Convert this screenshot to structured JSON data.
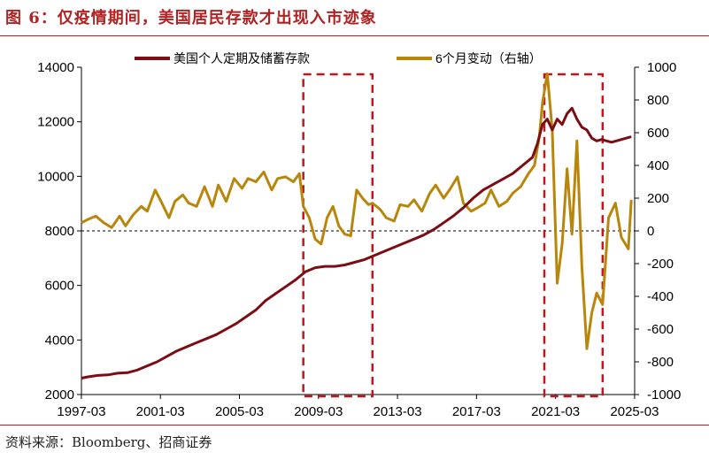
{
  "title": "图 6：仅疫情期间，美国居民存款才出现入市迹象",
  "source": "资料来源：Bloomberg、招商证券",
  "colors": {
    "title": "#b22222",
    "deposits": "#7b0e14",
    "change": "#b8860b",
    "highlight": "#c0161b"
  },
  "chart_data": {
    "type": "line",
    "x_tick_labels": [
      "1997-03",
      "2001-03",
      "2005-03",
      "2009-03",
      "2013-03",
      "2017-03",
      "2021-03",
      "2025-03"
    ],
    "x_range": [
      1997.17,
      2025.17
    ],
    "y_left": {
      "ticks": [
        2000,
        4000,
        6000,
        8000,
        10000,
        12000,
        14000
      ],
      "range": [
        2000,
        14000
      ]
    },
    "y_right": {
      "ticks": [
        -1000,
        -800,
        -600,
        -400,
        -200,
        0,
        200,
        400,
        600,
        800,
        1000
      ],
      "range": [
        -1000,
        1000
      ]
    },
    "zero_reference_line": "right-axis 0 (dashed)",
    "highlight_periods": [
      [
        2008.4,
        2011.9
      ],
      [
        2020.6,
        2023.55
      ]
    ],
    "series": [
      {
        "name": "美国个人定期及储蓄存款",
        "axis": "left",
        "x": [
          1997.17,
          1997.5,
          1998.0,
          1998.5,
          1999.0,
          1999.5,
          2000.0,
          2000.5,
          2001.0,
          2001.5,
          2002.0,
          2002.5,
          2003.0,
          2003.5,
          2004.0,
          2004.5,
          2005.0,
          2005.5,
          2006.0,
          2006.5,
          2007.0,
          2007.5,
          2008.0,
          2008.5,
          2009.0,
          2009.5,
          2010.0,
          2010.5,
          2011.0,
          2011.5,
          2012.0,
          2012.5,
          2013.0,
          2013.5,
          2014.0,
          2014.5,
          2015.0,
          2015.5,
          2016.0,
          2016.5,
          2017.0,
          2017.5,
          2018.0,
          2018.5,
          2019.0,
          2019.5,
          2020.0,
          2020.25,
          2020.5,
          2020.75,
          2021.0,
          2021.25,
          2021.5,
          2021.75,
          2022.0,
          2022.25,
          2022.5,
          2022.75,
          2023.0,
          2023.25,
          2023.5,
          2023.75,
          2024.0,
          2024.5,
          2025.0
        ],
        "values": [
          2600,
          2650,
          2700,
          2720,
          2780,
          2800,
          2900,
          3050,
          3200,
          3400,
          3600,
          3750,
          3900,
          4050,
          4200,
          4400,
          4600,
          4850,
          5100,
          5450,
          5700,
          5950,
          6200,
          6500,
          6650,
          6700,
          6700,
          6750,
          6850,
          6950,
          7100,
          7250,
          7400,
          7550,
          7700,
          7850,
          8050,
          8300,
          8550,
          8850,
          9200,
          9500,
          9700,
          9900,
          10100,
          10400,
          10700,
          11200,
          11900,
          12100,
          11700,
          12100,
          11900,
          12300,
          12500,
          12100,
          11800,
          11700,
          11400,
          11300,
          11350,
          11300,
          11250,
          11350,
          11450
        ]
      },
      {
        "name": "6个月变动（右轴）",
        "axis": "right",
        "x": [
          1997.17,
          1997.5,
          1997.9,
          1998.3,
          1998.7,
          1999.1,
          1999.4,
          1999.8,
          2000.2,
          2000.5,
          2000.9,
          2001.2,
          2001.6,
          2001.9,
          2002.3,
          2002.6,
          2003.0,
          2003.4,
          2003.8,
          2004.1,
          2004.5,
          2004.9,
          2005.3,
          2005.6,
          2006.0,
          2006.4,
          2006.8,
          2007.1,
          2007.5,
          2007.9,
          2008.2,
          2008.4,
          2008.7,
          2009.0,
          2009.3,
          2009.6,
          2009.9,
          2010.2,
          2010.5,
          2010.8,
          2011.1,
          2011.4,
          2011.7,
          2011.9,
          2012.3,
          2012.6,
          2013.0,
          2013.3,
          2013.7,
          2014.0,
          2014.4,
          2014.8,
          2015.1,
          2015.5,
          2015.8,
          2016.2,
          2016.5,
          2016.9,
          2017.2,
          2017.6,
          2017.9,
          2018.3,
          2018.7,
          2019.0,
          2019.4,
          2019.8,
          2020.1,
          2020.35,
          2020.5,
          2020.75,
          2021.0,
          2021.25,
          2021.5,
          2021.75,
          2022.0,
          2022.25,
          2022.5,
          2022.75,
          2023.0,
          2023.25,
          2023.55,
          2023.85,
          2024.2,
          2024.5,
          2024.85,
          2025.0
        ],
        "values": [
          50,
          70,
          90,
          50,
          20,
          90,
          30,
          100,
          150,
          120,
          250,
          180,
          80,
          180,
          220,
          170,
          150,
          270,
          150,
          280,
          180,
          320,
          260,
          320,
          300,
          360,
          250,
          320,
          330,
          300,
          350,
          150,
          80,
          -50,
          -80,
          80,
          150,
          30,
          -20,
          -30,
          250,
          200,
          160,
          170,
          130,
          80,
          60,
          160,
          150,
          190,
          120,
          230,
          280,
          200,
          250,
          330,
          170,
          120,
          140,
          170,
          250,
          150,
          180,
          230,
          270,
          350,
          400,
          580,
          780,
          960,
          620,
          -320,
          -80,
          380,
          -20,
          550,
          -220,
          -720,
          -500,
          -380,
          -450,
          80,
          170,
          -40,
          -110,
          190
        ],
        "displayed_axis_min": -1000
      }
    ]
  }
}
